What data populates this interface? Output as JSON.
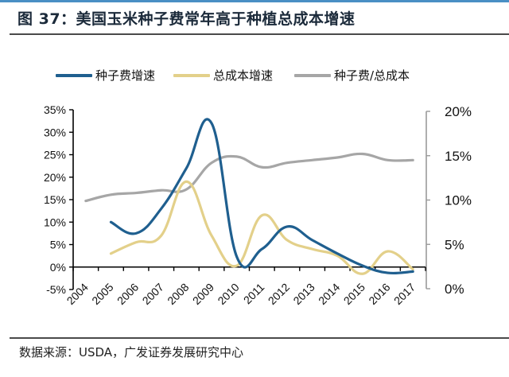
{
  "header": {
    "title": "图 37：美国玉米种子费常年高于种植总成本增速"
  },
  "legend": [
    {
      "label": "种子费增速",
      "color": "#1f5f8f"
    },
    {
      "label": "总成本增速",
      "color": "#e3d08a"
    },
    {
      "label": "种子费/总成本",
      "color": "#a6a6a6"
    }
  ],
  "footer": {
    "source": "数据来源：USDA，广发证券发展研究中心"
  },
  "chart_data": {
    "type": "line",
    "title": "美国玉米种子费常年高于种植总成本增速",
    "categories": [
      "2004",
      "2005",
      "2006",
      "2007",
      "2008",
      "2009",
      "2010",
      "2011",
      "2012",
      "2013",
      "2014",
      "2015",
      "2016",
      "2017"
    ],
    "left_axis": {
      "ticks": [
        "35%",
        "30%",
        "25%",
        "20%",
        "15%",
        "10%",
        "5%",
        "0%",
        "-5%"
      ],
      "ylim": [
        -5,
        35
      ],
      "unit": "%"
    },
    "right_axis": {
      "ticks": [
        "20%",
        "15%",
        "10%",
        "5%",
        "0%"
      ],
      "ylim": [
        0,
        20
      ],
      "unit": "%"
    },
    "series": [
      {
        "name": "种子费增速",
        "axis": "left",
        "color": "#1f5f8f",
        "values": [
          null,
          10.0,
          7.5,
          13.0,
          22.0,
          32.0,
          2.3,
          4.0,
          9.0,
          6.0,
          3.0,
          0.3,
          -1.3,
          -1.0
        ]
      },
      {
        "name": "总成本增速",
        "axis": "left",
        "color": "#e3d08a",
        "values": [
          null,
          3.0,
          5.5,
          7.0,
          19.0,
          7.0,
          0.3,
          11.5,
          6.0,
          4.0,
          2.5,
          -1.5,
          3.5,
          -0.5
        ]
      },
      {
        "name": "种子费/总成本",
        "axis": "right",
        "color": "#a6a6a6",
        "values": [
          9.9,
          10.6,
          10.8,
          11.1,
          11.2,
          14.2,
          14.9,
          13.7,
          14.2,
          14.5,
          14.8,
          15.2,
          14.5,
          14.5
        ]
      }
    ],
    "grid": false,
    "legend_position": "top"
  }
}
